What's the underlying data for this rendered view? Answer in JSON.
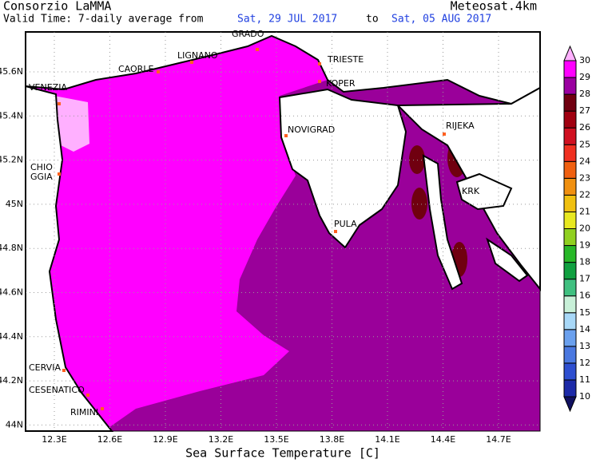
{
  "header": {
    "left_title": "Consorzio LaMMA",
    "right_title": "Meteosat.4km",
    "valid_prefix": "Valid Time: 7-daily average from",
    "date_from": "Sat, 29 JUL 2017",
    "date_sep": "to",
    "date_to": "Sat, 05 AUG 2017"
  },
  "map": {
    "lon_labels": [
      "12.3E",
      "12.6E",
      "12.9E",
      "13.2E",
      "13.5E",
      "13.8E",
      "14.1E",
      "14.4E",
      "14.7E"
    ],
    "lat_labels": [
      "45.6N",
      "45.4N",
      "45.2N",
      "45N",
      "44.8N",
      "44.6N",
      "44.4N",
      "44.2N",
      "44N"
    ],
    "places": [
      "GRADO",
      "LIGNANO",
      "TRIESTE",
      "CAORLE",
      "KOPER",
      "VENEZIA",
      "NOVIGRAD",
      "RIJEKA",
      "CHIO",
      "GGIA",
      "KRK",
      "PULA",
      "CERVIA",
      "CESENATICO",
      "RIMINI"
    ]
  },
  "colorbar": {
    "labels": [
      10,
      11,
      12,
      13,
      14,
      15,
      16,
      17,
      18,
      19,
      20,
      21,
      22,
      23,
      24,
      25,
      26,
      27,
      28,
      29,
      30
    ],
    "colors": [
      "#101060",
      "#1c2aa8",
      "#2e4fd0",
      "#4a78e0",
      "#6aa0ee",
      "#a8d8f8",
      "#c8f0d8",
      "#40c080",
      "#10a040",
      "#28b828",
      "#90d020",
      "#e8e820",
      "#f0c010",
      "#f09010",
      "#f06010",
      "#f03020",
      "#d01020",
      "#a00010",
      "#700010",
      "#9a00a0",
      "#ff00ff",
      "#ffb0ff"
    ]
  },
  "footer": {
    "title": "Sea Surface Temperature [C]"
  }
}
